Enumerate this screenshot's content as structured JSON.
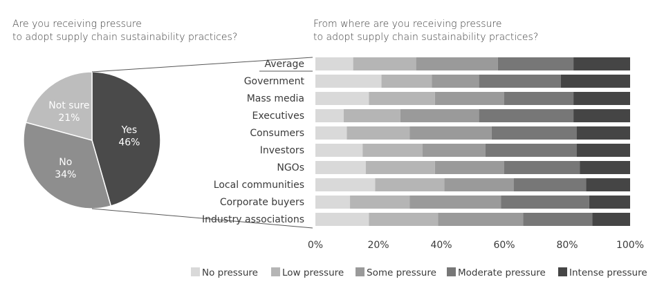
{
  "chart_data": [
    {
      "type": "pie",
      "title": "Are you receiving pressure to adopt supply chain sustainability practices?",
      "title_lines": [
        "Are you receiving pressure",
        "to adopt supply chain sustainability practices?"
      ],
      "slices": [
        {
          "label": "Yes",
          "value": 46,
          "display": "46%",
          "color": "#4a4a4a"
        },
        {
          "label": "No",
          "value": 34,
          "display": "34%",
          "color": "#8e8e8e"
        },
        {
          "label": "Not sure",
          "value": 21,
          "display": "21%",
          "color": "#bdbdbd"
        }
      ]
    },
    {
      "type": "bar",
      "orientation": "horizontal",
      "stacked": true,
      "title": "From where are you receiving pressure to adopt supply chain sustainability practices?",
      "title_lines": [
        "From where are you receiving pressure",
        "to adopt supply chain sustainability practices?"
      ],
      "categories": [
        "Average",
        "Government",
        "Mass media",
        "Executives",
        "Consumers",
        "Investors",
        "NGOs",
        "Local communities",
        "Corporate buyers",
        "Industry associations"
      ],
      "xlim": [
        0,
        100
      ],
      "xticks": [
        "0%",
        "20%",
        "40%",
        "60%",
        "80%",
        "100%"
      ],
      "legend_position": "bottom",
      "series": [
        {
          "name": "No pressure",
          "color": "#d9d9d9",
          "values": [
            12,
            21,
            17,
            9,
            10,
            15,
            16,
            19,
            11,
            17
          ]
        },
        {
          "name": "Low pressure",
          "color": "#b5b5b5",
          "values": [
            20,
            16,
            21,
            18,
            20,
            19,
            22,
            22,
            19,
            22
          ]
        },
        {
          "name": "Some pressure",
          "color": "#9a9a9a",
          "values": [
            26,
            15,
            22,
            25,
            26,
            20,
            22,
            22,
            29,
            27
          ]
        },
        {
          "name": "Moderate pressure",
          "color": "#777777",
          "values": [
            24,
            26,
            22,
            30,
            27,
            29,
            24,
            23,
            28,
            22
          ]
        },
        {
          "name": "Intense pressure",
          "color": "#454545",
          "values": [
            18,
            22,
            18,
            18,
            17,
            17,
            16,
            14,
            13,
            12
          ]
        }
      ]
    }
  ]
}
